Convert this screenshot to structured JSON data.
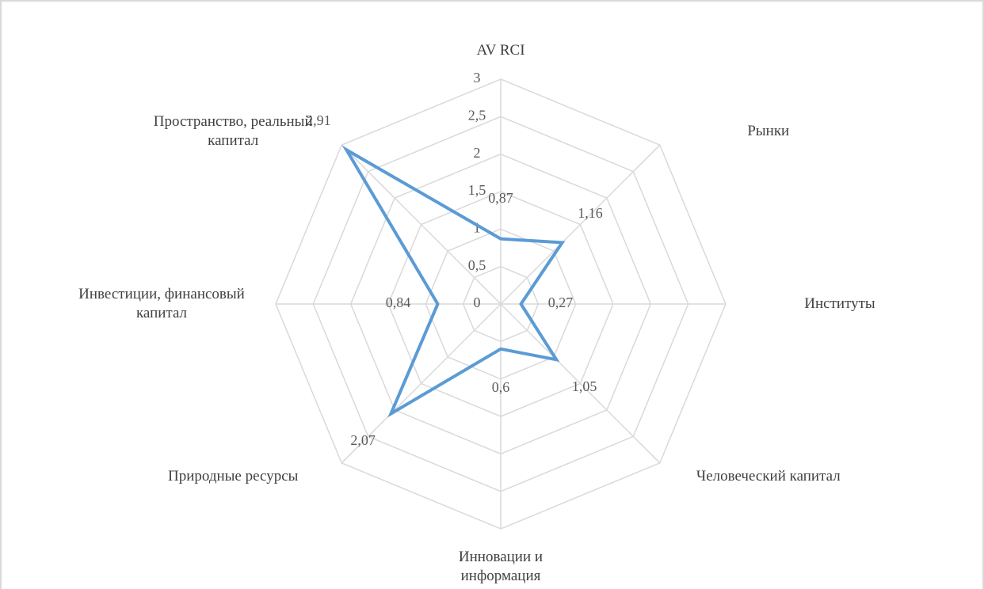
{
  "chart_data": {
    "type": "radar",
    "categories": [
      "AV RCI",
      "Рынки",
      "Институты",
      "Человеческий капитал",
      "Инновации и информация",
      "Природные ресурсы",
      "Инвестиции, финансовый капитал",
      "Пространство, реальный капитал"
    ],
    "series": [
      {
        "color": "#5b9bd5",
        "values": [
          0.87,
          1.16,
          0.27,
          1.05,
          0.6,
          2.07,
          0.84,
          2.91
        ],
        "value_labels": [
          "0,87",
          "1,16",
          "0,27",
          "1,05",
          "0,6",
          "2,07",
          "0,84",
          "2,91"
        ]
      }
    ],
    "ylim": [
      0,
      3
    ],
    "yticks": [
      0,
      {
        "value": 0.5,
        "label": "0,5"
      },
      1,
      {
        "value": 1.5,
        "label": "1,5"
      },
      2,
      {
        "value": 2.5,
        "label": "2,5"
      },
      3
    ],
    "grid": true
  }
}
